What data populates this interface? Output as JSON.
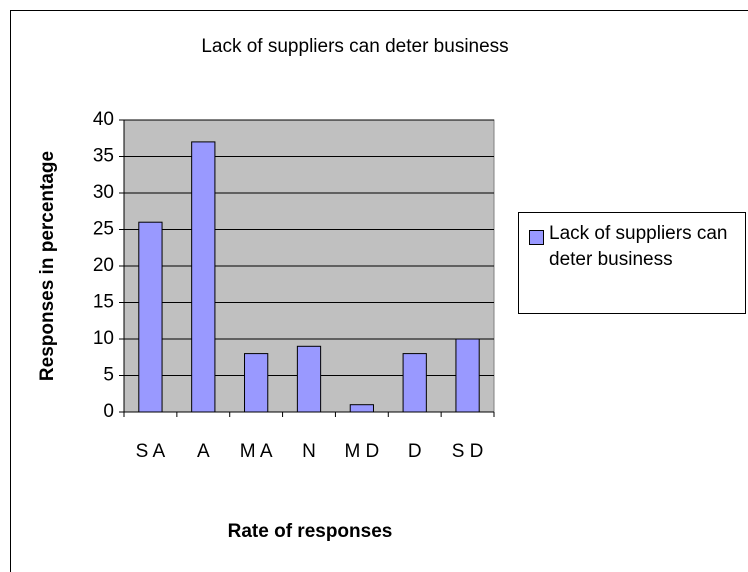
{
  "chart_data": {
    "type": "bar",
    "title": "Lack of suppliers can deter business",
    "x_label": "Rate of responses",
    "y_label": "Responses in percentage",
    "categories": [
      "S A",
      "A",
      "M A",
      "N",
      "M D",
      "D",
      "S D"
    ],
    "series": [
      {
        "name": "Lack of suppliers can deter business",
        "color": "#9999ff",
        "values": [
          26,
          37,
          8,
          9,
          1,
          8,
          10
        ]
      }
    ],
    "ylim": [
      0,
      40
    ],
    "yticks": [
      0,
      5,
      10,
      15,
      20,
      25,
      30,
      35,
      40
    ],
    "grid": true,
    "legend": "right"
  }
}
